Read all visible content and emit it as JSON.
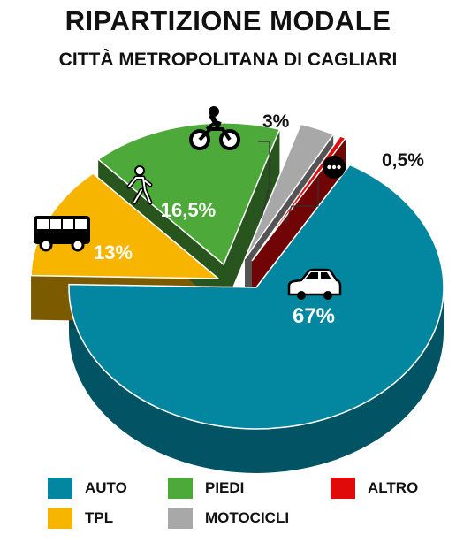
{
  "title": "RIPARTIZIONE MODALE",
  "subtitle": "CITTÀ METROPOLITANA DI CAGLIARI",
  "chart_data": {
    "type": "pie",
    "title": "RIPARTIZIONE MODALE",
    "subtitle": "CITTÀ METROPOLITANA DI CAGLIARI",
    "style": "3d-exploded",
    "legend_position": "bottom",
    "slices": [
      {
        "key": "auto",
        "name": "AUTO",
        "value": 67,
        "label": "67%",
        "color": "#03869F",
        "icon": "car-icon"
      },
      {
        "key": "tpl",
        "name": "TPL",
        "value": 13,
        "label": "13%",
        "color": "#F7B500",
        "icon": "bus-icon"
      },
      {
        "key": "piedi",
        "name": "PIEDI",
        "value": 16.5,
        "label": "16,5%",
        "color": "#4DA93A",
        "icon": "pedestrian-icon"
      },
      {
        "key": "moto",
        "name": "MOTOCICLI",
        "value": 3,
        "label": "3%",
        "color": "#A8A8A8",
        "icon": "motorcycle-icon"
      },
      {
        "key": "altro",
        "name": "ALTRO",
        "value": 0.5,
        "label": "0,5%",
        "color": "#E10A0A",
        "icon": "more-dots-icon"
      }
    ]
  }
}
